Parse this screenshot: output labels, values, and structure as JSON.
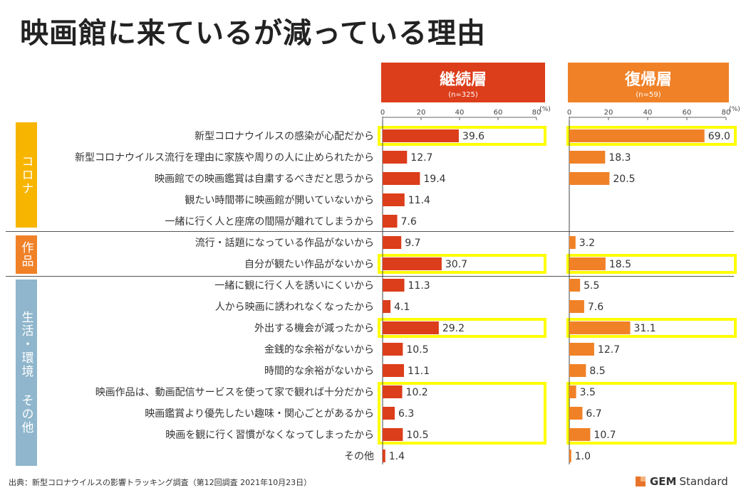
{
  "title": "映画館に来ているが減っている理由",
  "source": "出典：新型コロナウイルスの影響トラッキング調査（第12回調査 2021年10月23日）",
  "logo": {
    "bold": "GEM",
    "rest": "Standard"
  },
  "panels": [
    {
      "name": "継続層",
      "n": "(n=325)",
      "color": "#dc3d1a"
    },
    {
      "name": "復帰層",
      "n": "(n=59)",
      "color": "#f08127"
    }
  ],
  "unit": "(%)",
  "categories": [
    {
      "name": "コロナ",
      "color": "#f7b500"
    },
    {
      "name": "作品",
      "color": "#f08127"
    },
    {
      "name": "生活・環境 その他",
      "color": "#8fb6cc"
    }
  ],
  "questions": [
    "新型コロナウイルスの感染が心配だから",
    "新型コロナウイルス流行を理由に家族や周りの人に止められたから",
    "映画館での映画鑑賞は自粛するべきだと思うから",
    "観たい時間帯に映画館が開いていないから",
    "一緒に行く人と座席の間隔が離れてしまうから",
    "流行・話題になっている作品がないから",
    "自分が観たい作品がないから",
    "一緒に観に行く人を誘いにくいから",
    "人から映画に誘われなくなったから",
    "外出する機会が減ったから",
    "金銭的な余裕がないから",
    "時間的な余裕がないから",
    "映画作品は、動画配信サービスを使って家で観れば十分だから",
    "映画鑑賞より優先したい趣味・関心ごとがあるから",
    "映画を観に行く習慣がなくなってしまったから",
    "その他"
  ],
  "chart_data": {
    "type": "bar",
    "orientation": "horizontal",
    "xlim": [
      0,
      80
    ],
    "ticks": [
      0,
      20,
      40,
      60,
      80
    ],
    "series": [
      {
        "name": "継続層",
        "color": "#dc3d1a",
        "values": [
          39.6,
          12.7,
          19.4,
          11.4,
          7.6,
          9.7,
          30.7,
          11.3,
          4.1,
          29.2,
          10.5,
          11.1,
          10.2,
          6.3,
          10.5,
          1.4
        ]
      },
      {
        "name": "復帰層",
        "color": "#f08127",
        "values": [
          69.0,
          18.3,
          20.5,
          null,
          null,
          3.2,
          18.5,
          5.5,
          7.6,
          31.1,
          12.7,
          8.5,
          3.5,
          6.7,
          10.7,
          1.0
        ]
      }
    ],
    "value_labels": [
      [
        "39.6",
        "12.7",
        "19.4",
        "11.4",
        "7.6",
        "9.7",
        "30.7",
        "11.3",
        "4.1",
        "29.2",
        "10.5",
        "11.1",
        "10.2",
        "6.3",
        "10.5",
        "1.4"
      ],
      [
        "69.0",
        "18.3",
        "20.5",
        "",
        "",
        "3.2",
        "18.5",
        "5.5",
        "7.6",
        "31.1",
        "12.7",
        "8.5",
        "3.5",
        "6.7",
        "10.7",
        "1.0"
      ]
    ],
    "highlight_rows": [
      [
        0
      ],
      [
        6
      ],
      [
        9
      ],
      [
        12,
        13,
        14
      ]
    ],
    "highlight_color": "#ffff00"
  }
}
